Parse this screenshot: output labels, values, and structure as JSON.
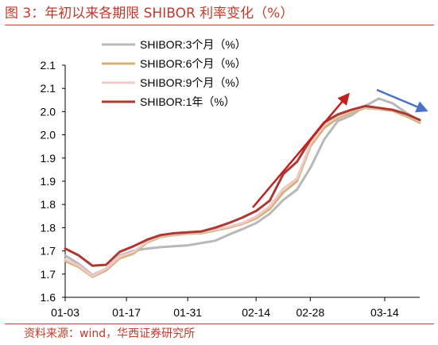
{
  "title": "图 3：年初以来各期限 SHIBOR 利率变化（%）",
  "source": "资料来源：wind，华西证券研究所",
  "chart_data": {
    "type": "line",
    "title": "图 3：年初以来各期限 SHIBOR 利率变化（%）",
    "xlabel": "",
    "ylabel": "",
    "x": [
      "01-03",
      "01-06",
      "01-09",
      "01-12",
      "01-15",
      "01-18",
      "01-21",
      "01-24",
      "01-27",
      "01-30",
      "02-02",
      "02-05",
      "02-08",
      "02-11",
      "02-14",
      "02-17",
      "02-20",
      "02-23",
      "02-26",
      "03-01",
      "03-04",
      "03-07",
      "03-10",
      "03-13",
      "03-16",
      "03-19",
      "03-22"
    ],
    "x_tick_labels": [
      "01-03",
      "01-17",
      "01-31",
      "02-14",
      "02-28",
      "03-14"
    ],
    "y_tick_labels": [
      "1.6",
      "1.7",
      "1.7",
      "1.8",
      "1.8",
      "1.9",
      "1.9",
      "2.0",
      "2.0",
      "2.1",
      "2.1"
    ],
    "ylim": [
      1.6,
      2.1
    ],
    "grid": false,
    "legend_position": "top-left",
    "series": [
      {
        "name": "SHIBOR:3个月（%）",
        "color": "#b8b8b8",
        "values": [
          1.69,
          1.672,
          1.648,
          1.662,
          1.69,
          1.7,
          1.705,
          1.708,
          1.71,
          1.712,
          1.717,
          1.722,
          1.735,
          1.747,
          1.76,
          1.78,
          1.81,
          1.832,
          1.88,
          1.94,
          1.98,
          1.992,
          2.012,
          2.028,
          2.018,
          1.998,
          1.98
        ]
      },
      {
        "name": "SHIBOR:6个月（%）",
        "color": "#d4b27a",
        "values": [
          1.678,
          1.665,
          1.644,
          1.658,
          1.684,
          1.694,
          1.718,
          1.73,
          1.734,
          1.737,
          1.738,
          1.744,
          1.75,
          1.758,
          1.77,
          1.79,
          1.826,
          1.85,
          1.926,
          1.965,
          1.986,
          1.998,
          2.008,
          2.005,
          2.002,
          1.99,
          1.976
        ]
      },
      {
        "name": "SHIBOR:9个月（%）",
        "color": "#f0c9c9",
        "values": [
          1.682,
          1.668,
          1.646,
          1.662,
          1.688,
          1.698,
          1.72,
          1.732,
          1.736,
          1.738,
          1.74,
          1.746,
          1.752,
          1.76,
          1.774,
          1.796,
          1.834,
          1.856,
          1.932,
          1.972,
          1.99,
          2.002,
          2.01,
          2.006,
          2.004,
          1.994,
          1.98
        ]
      },
      {
        "name": "SHIBOR:1年（%）",
        "color": "#a93a34",
        "values": [
          1.705,
          1.69,
          1.668,
          1.67,
          1.698,
          1.71,
          1.724,
          1.734,
          1.738,
          1.74,
          1.742,
          1.75,
          1.76,
          1.772,
          1.786,
          1.808,
          1.866,
          1.892,
          1.94,
          1.977,
          1.994,
          2.004,
          2.012,
          2.008,
          2.004,
          1.995,
          1.982
        ]
      }
    ]
  }
}
